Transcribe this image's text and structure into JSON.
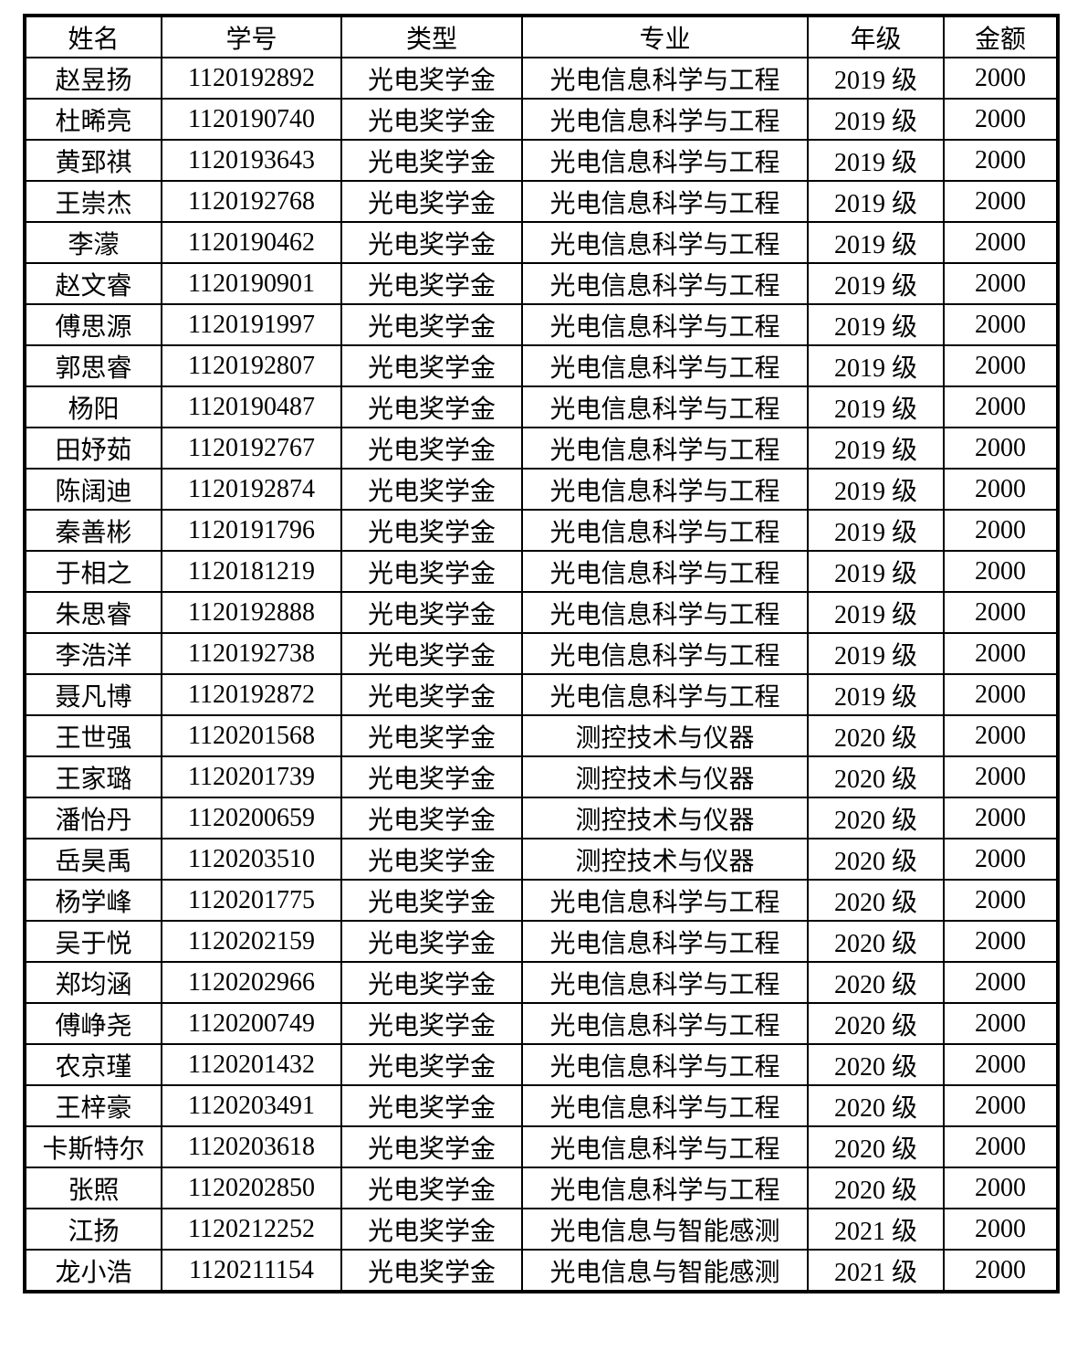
{
  "table": {
    "columns": [
      {
        "key": "name",
        "label": "姓名"
      },
      {
        "key": "student_id",
        "label": "学号"
      },
      {
        "key": "type",
        "label": "类型"
      },
      {
        "key": "major",
        "label": "专业"
      },
      {
        "key": "grade",
        "label": "年级"
      },
      {
        "key": "amount",
        "label": "金额"
      }
    ],
    "rows": [
      {
        "name": "赵昱扬",
        "student_id": "1120192892",
        "type": "光电奖学金",
        "major": "光电信息科学与工程",
        "grade": "2019 级",
        "amount": "2000"
      },
      {
        "name": "杜晞亮",
        "student_id": "1120190740",
        "type": "光电奖学金",
        "major": "光电信息科学与工程",
        "grade": "2019 级",
        "amount": "2000"
      },
      {
        "name": "黄郅祺",
        "student_id": "1120193643",
        "type": "光电奖学金",
        "major": "光电信息科学与工程",
        "grade": "2019 级",
        "amount": "2000"
      },
      {
        "name": "王崇杰",
        "student_id": "1120192768",
        "type": "光电奖学金",
        "major": "光电信息科学与工程",
        "grade": "2019 级",
        "amount": "2000"
      },
      {
        "name": "李濛",
        "student_id": "1120190462",
        "type": "光电奖学金",
        "major": "光电信息科学与工程",
        "grade": "2019 级",
        "amount": "2000"
      },
      {
        "name": "赵文睿",
        "student_id": "1120190901",
        "type": "光电奖学金",
        "major": "光电信息科学与工程",
        "grade": "2019 级",
        "amount": "2000"
      },
      {
        "name": "傅思源",
        "student_id": "1120191997",
        "type": "光电奖学金",
        "major": "光电信息科学与工程",
        "grade": "2019 级",
        "amount": "2000"
      },
      {
        "name": "郭思睿",
        "student_id": "1120192807",
        "type": "光电奖学金",
        "major": "光电信息科学与工程",
        "grade": "2019 级",
        "amount": "2000"
      },
      {
        "name": "杨阳",
        "student_id": "1120190487",
        "type": "光电奖学金",
        "major": "光电信息科学与工程",
        "grade": "2019 级",
        "amount": "2000"
      },
      {
        "name": "田妤茹",
        "student_id": "1120192767",
        "type": "光电奖学金",
        "major": "光电信息科学与工程",
        "grade": "2019 级",
        "amount": "2000"
      },
      {
        "name": "陈阔迪",
        "student_id": "1120192874",
        "type": "光电奖学金",
        "major": "光电信息科学与工程",
        "grade": "2019 级",
        "amount": "2000"
      },
      {
        "name": "秦善彬",
        "student_id": "1120191796",
        "type": "光电奖学金",
        "major": "光电信息科学与工程",
        "grade": "2019 级",
        "amount": "2000"
      },
      {
        "name": "于相之",
        "student_id": "1120181219",
        "type": "光电奖学金",
        "major": "光电信息科学与工程",
        "grade": "2019 级",
        "amount": "2000"
      },
      {
        "name": "朱思睿",
        "student_id": "1120192888",
        "type": "光电奖学金",
        "major": "光电信息科学与工程",
        "grade": "2019 级",
        "amount": "2000"
      },
      {
        "name": "李浩洋",
        "student_id": "1120192738",
        "type": "光电奖学金",
        "major": "光电信息科学与工程",
        "grade": "2019 级",
        "amount": "2000"
      },
      {
        "name": "聂凡博",
        "student_id": "1120192872",
        "type": "光电奖学金",
        "major": "光电信息科学与工程",
        "grade": "2019 级",
        "amount": "2000"
      },
      {
        "name": "王世强",
        "student_id": "1120201568",
        "type": "光电奖学金",
        "major": "测控技术与仪器",
        "grade": "2020 级",
        "amount": "2000"
      },
      {
        "name": "王家璐",
        "student_id": "1120201739",
        "type": "光电奖学金",
        "major": "测控技术与仪器",
        "grade": "2020 级",
        "amount": "2000"
      },
      {
        "name": "潘怡丹",
        "student_id": "1120200659",
        "type": "光电奖学金",
        "major": "测控技术与仪器",
        "grade": "2020 级",
        "amount": "2000"
      },
      {
        "name": "岳昊禹",
        "student_id": "1120203510",
        "type": "光电奖学金",
        "major": "测控技术与仪器",
        "grade": "2020 级",
        "amount": "2000"
      },
      {
        "name": "杨学峰",
        "student_id": "1120201775",
        "type": "光电奖学金",
        "major": "光电信息科学与工程",
        "grade": "2020 级",
        "amount": "2000"
      },
      {
        "name": "吴于悦",
        "student_id": "1120202159",
        "type": "光电奖学金",
        "major": "光电信息科学与工程",
        "grade": "2020 级",
        "amount": "2000"
      },
      {
        "name": "郑均涵",
        "student_id": "1120202966",
        "type": "光电奖学金",
        "major": "光电信息科学与工程",
        "grade": "2020 级",
        "amount": "2000"
      },
      {
        "name": "傅峥尧",
        "student_id": "1120200749",
        "type": "光电奖学金",
        "major": "光电信息科学与工程",
        "grade": "2020 级",
        "amount": "2000"
      },
      {
        "name": "农京瑾",
        "student_id": "1120201432",
        "type": "光电奖学金",
        "major": "光电信息科学与工程",
        "grade": "2020 级",
        "amount": "2000"
      },
      {
        "name": "王梓豪",
        "student_id": "1120203491",
        "type": "光电奖学金",
        "major": "光电信息科学与工程",
        "grade": "2020 级",
        "amount": "2000"
      },
      {
        "name": "卡斯特尔",
        "student_id": "1120203618",
        "type": "光电奖学金",
        "major": "光电信息科学与工程",
        "grade": "2020 级",
        "amount": "2000"
      },
      {
        "name": "张照",
        "student_id": "1120202850",
        "type": "光电奖学金",
        "major": "光电信息科学与工程",
        "grade": "2020 级",
        "amount": "2000"
      },
      {
        "name": "江扬",
        "student_id": "1120212252",
        "type": "光电奖学金",
        "major": "光电信息与智能感测",
        "grade": "2021 级",
        "amount": "2000"
      },
      {
        "name": "龙小浩",
        "student_id": "1120211154",
        "type": "光电奖学金",
        "major": "光电信息与智能感测",
        "grade": "2021 级",
        "amount": "2000"
      }
    ],
    "text_color": "#000000",
    "border_color": "#000000",
    "background_color": "#ffffff"
  }
}
